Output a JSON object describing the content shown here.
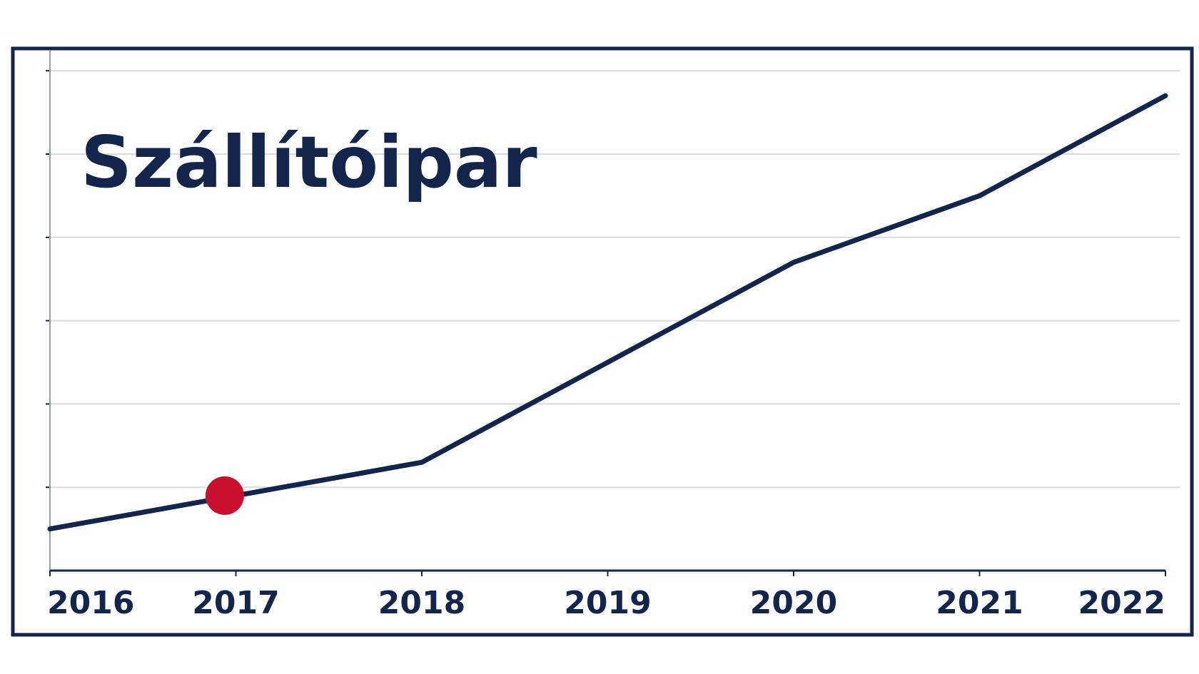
{
  "chart_data": {
    "type": "line",
    "title": "Szállítóipar",
    "xlabel": "",
    "ylabel": "",
    "categories": [
      "2016",
      "2017",
      "2018",
      "2019",
      "2020",
      "2021",
      "2022"
    ],
    "x": [
      2016,
      2017,
      2018,
      2019,
      2020,
      2021,
      2022
    ],
    "series": [
      {
        "values": [
          10,
          18,
          26,
          50,
          74,
          90,
          114
        ]
      }
    ],
    "highlight": {
      "x": 2017,
      "y": 18,
      "color": "#c8102e"
    },
    "ylim": [
      0,
      125
    ],
    "xlim": [
      2016,
      2022
    ],
    "grid": true,
    "legend": "none"
  },
  "colors": {
    "line": "#13254a",
    "frame": "#13254a",
    "grid": "#d9dbe0",
    "text": "#13254a",
    "highlight": "#c8102e"
  }
}
